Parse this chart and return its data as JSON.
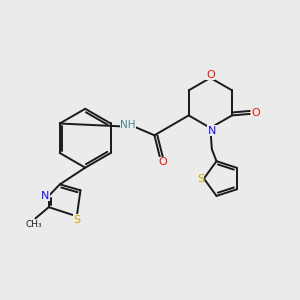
{
  "background_color": "#ebebeb",
  "bond_color": "#1a1a1a",
  "atom_colors": {
    "O": "#ee1111",
    "N": "#1111ee",
    "S": "#ccaa00",
    "NH": "#448888",
    "C": "#1a1a1a"
  },
  "figsize": [
    3.0,
    3.0
  ],
  "dpi": 100
}
